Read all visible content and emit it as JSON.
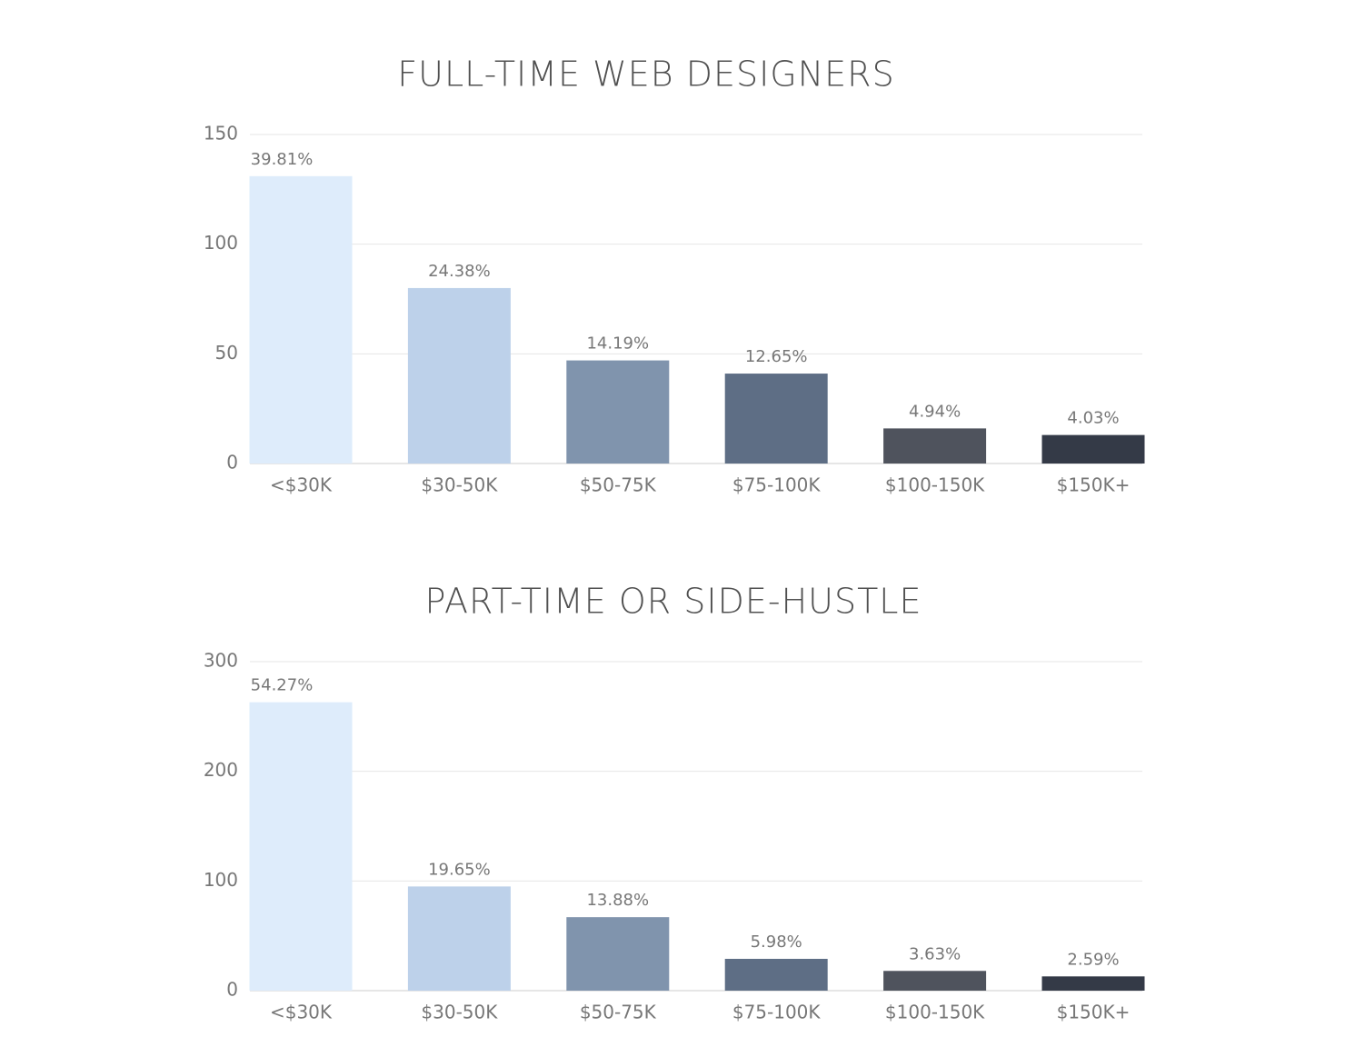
{
  "chart_data": [
    {
      "type": "bar",
      "title": "FULL-TIME WEB DESIGNERS",
      "categories": [
        "<$30K",
        "$30-50K",
        "$50-75K",
        "$75-100K",
        "$100-150K",
        "$150K+"
      ],
      "values": [
        131,
        80,
        47,
        41,
        16,
        13
      ],
      "bar_labels": [
        "39.81%",
        "24.38%",
        "14.19%",
        "12.65%",
        "4.94%",
        "4.03%"
      ],
      "colors": [
        "#deecfb",
        "#bdd1ea",
        "#8094ad",
        "#5e6e85",
        "#4f535d",
        "#343a47"
      ],
      "ylim": [
        0,
        150
      ],
      "yticks": [
        0,
        50,
        100,
        150
      ],
      "grid": true
    },
    {
      "type": "bar",
      "title": "PART-TIME OR SIDE-HUSTLE",
      "categories": [
        "<$30K",
        "$30-50K",
        "$50-75K",
        "$75-100K",
        "$100-150K",
        "$150K+"
      ],
      "values": [
        263,
        95,
        67,
        29,
        18,
        13
      ],
      "bar_labels": [
        "54.27%",
        "19.65%",
        "13.88%",
        "5.98%",
        "3.63%",
        "2.59%"
      ],
      "colors": [
        "#deecfb",
        "#bdd1ea",
        "#8094ad",
        "#5e6e85",
        "#4f535d",
        "#343a47"
      ],
      "ylim": [
        0,
        300
      ],
      "yticks": [
        0,
        100,
        200,
        300
      ],
      "grid": true
    }
  ]
}
